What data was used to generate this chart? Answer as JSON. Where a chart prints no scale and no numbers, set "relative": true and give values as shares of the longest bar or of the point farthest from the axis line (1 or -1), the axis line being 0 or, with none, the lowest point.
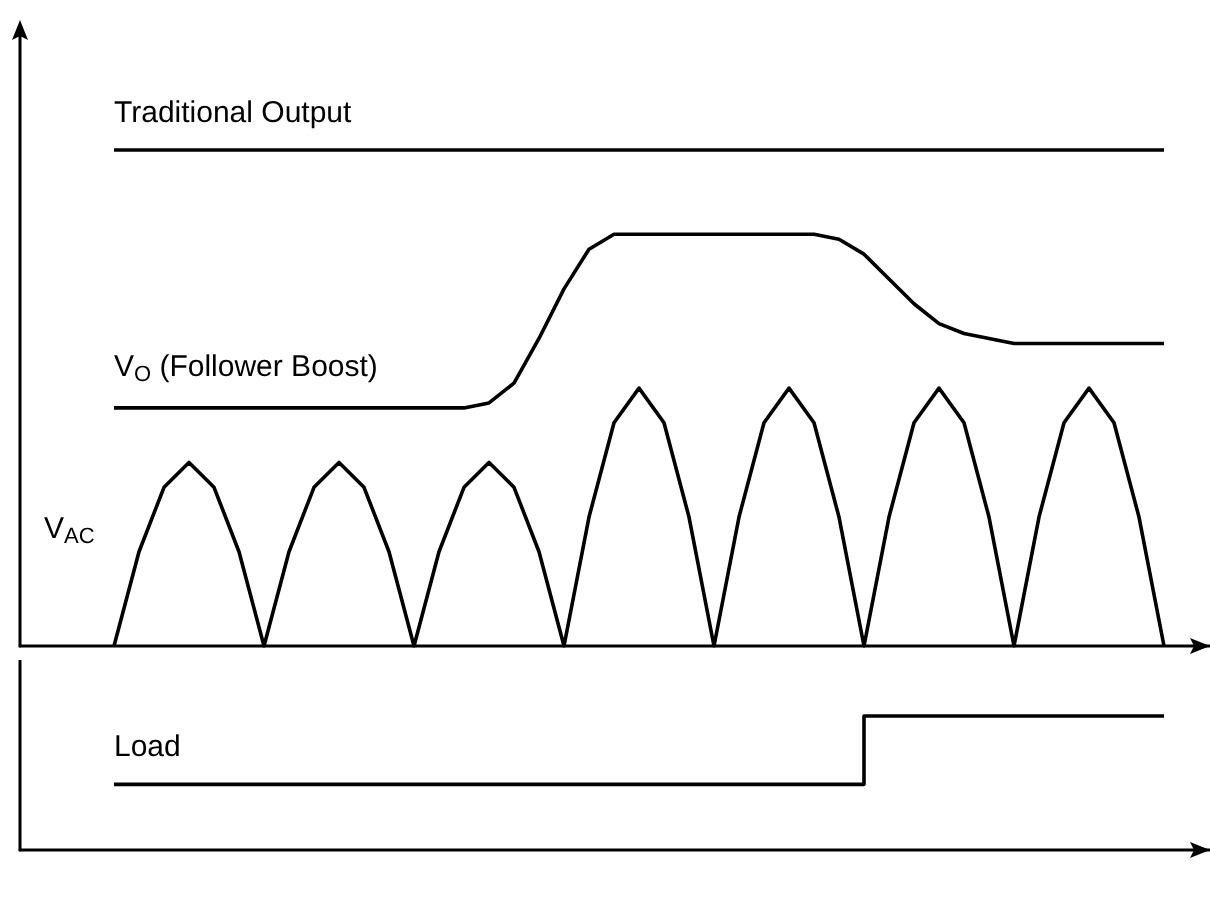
{
  "chart_data": [
    {
      "type": "line",
      "relative": true,
      "grid": false,
      "legend": false,
      "marker": "none",
      "categories": [
        null,
        null,
        null,
        null,
        null,
        null,
        null,
        null,
        null,
        null,
        null,
        null,
        null,
        null,
        null,
        null,
        null,
        null,
        null,
        null,
        null,
        null,
        null,
        null,
        null,
        null,
        null,
        null,
        null,
        null,
        null,
        null,
        null,
        null,
        null,
        null,
        null,
        null,
        null,
        null,
        null,
        null,
        null
      ],
      "series": [
        {
          "name": "Traditional Output",
          "color": "#000000",
          "values": [
            1,
            1,
            1,
            1,
            1,
            1,
            1,
            1,
            1,
            1,
            1,
            1,
            1,
            1,
            1,
            1,
            1,
            1,
            1,
            1,
            1,
            1,
            1,
            1,
            1,
            1,
            1,
            1,
            1,
            1,
            1,
            1,
            1,
            1,
            1,
            1,
            1,
            1,
            1,
            1,
            1,
            1,
            1
          ]
        },
        {
          "name": "V$_{O}$ (Follower Boost)",
          "color": "#000000",
          "values": [
            0.48,
            0.48,
            0.48,
            0.48,
            0.48,
            0.48,
            0.48,
            0.48,
            0.48,
            0.48,
            0.48,
            0.48,
            0.48,
            0.48,
            0.48,
            0.49,
            0.53,
            0.62,
            0.72,
            0.8,
            0.83,
            0.83,
            0.83,
            0.83,
            0.83,
            0.83,
            0.83,
            0.83,
            0.83,
            0.82,
            0.79,
            0.74,
            0.69,
            0.65,
            0.63,
            0.62,
            0.61,
            0.61,
            0.61,
            0.61,
            0.61,
            0.61,
            0.61
          ]
        },
        {
          "name": "V$_{AC}$",
          "color": "#000000",
          "values": [
            0,
            0.19,
            0.32,
            0.37,
            0.32,
            0.19,
            0,
            0.19,
            0.32,
            0.37,
            0.32,
            0.19,
            0,
            0.19,
            0.32,
            0.37,
            0.32,
            0.19,
            0,
            0.26,
            0.45,
            0.52,
            0.45,
            0.26,
            0,
            0.26,
            0.45,
            0.52,
            0.45,
            0.26,
            0,
            0.26,
            0.45,
            0.52,
            0.45,
            0.26,
            0,
            0.26,
            0.45,
            0.52,
            0.45,
            0.26,
            0
          ]
        }
      ]
    },
    {
      "type": "step",
      "relative": true,
      "grid": false,
      "legend": false,
      "marker": "none",
      "categories": [
        null,
        null,
        null,
        null,
        null,
        null,
        null,
        null,
        null,
        null,
        null,
        null,
        null,
        null,
        null,
        null,
        null,
        null,
        null,
        null,
        null,
        null,
        null,
        null,
        null,
        null,
        null,
        null,
        null,
        null,
        null,
        null,
        null,
        null,
        null,
        null,
        null,
        null,
        null,
        null,
        null,
        null,
        null
      ],
      "series": [
        {
          "name": "Load",
          "color": "#000000",
          "values": [
            0.49,
            0.49,
            0.49,
            0.49,
            0.49,
            0.49,
            0.49,
            0.49,
            0.49,
            0.49,
            0.49,
            0.49,
            0.49,
            0.49,
            0.49,
            0.49,
            0.49,
            0.49,
            0.49,
            0.49,
            0.49,
            0.49,
            0.49,
            0.49,
            0.49,
            0.49,
            0.49,
            0.49,
            0.49,
            0.49,
            1,
            1,
            1,
            1,
            1,
            1,
            1,
            1,
            1,
            1,
            1,
            1,
            1
          ]
        }
      ]
    }
  ]
}
